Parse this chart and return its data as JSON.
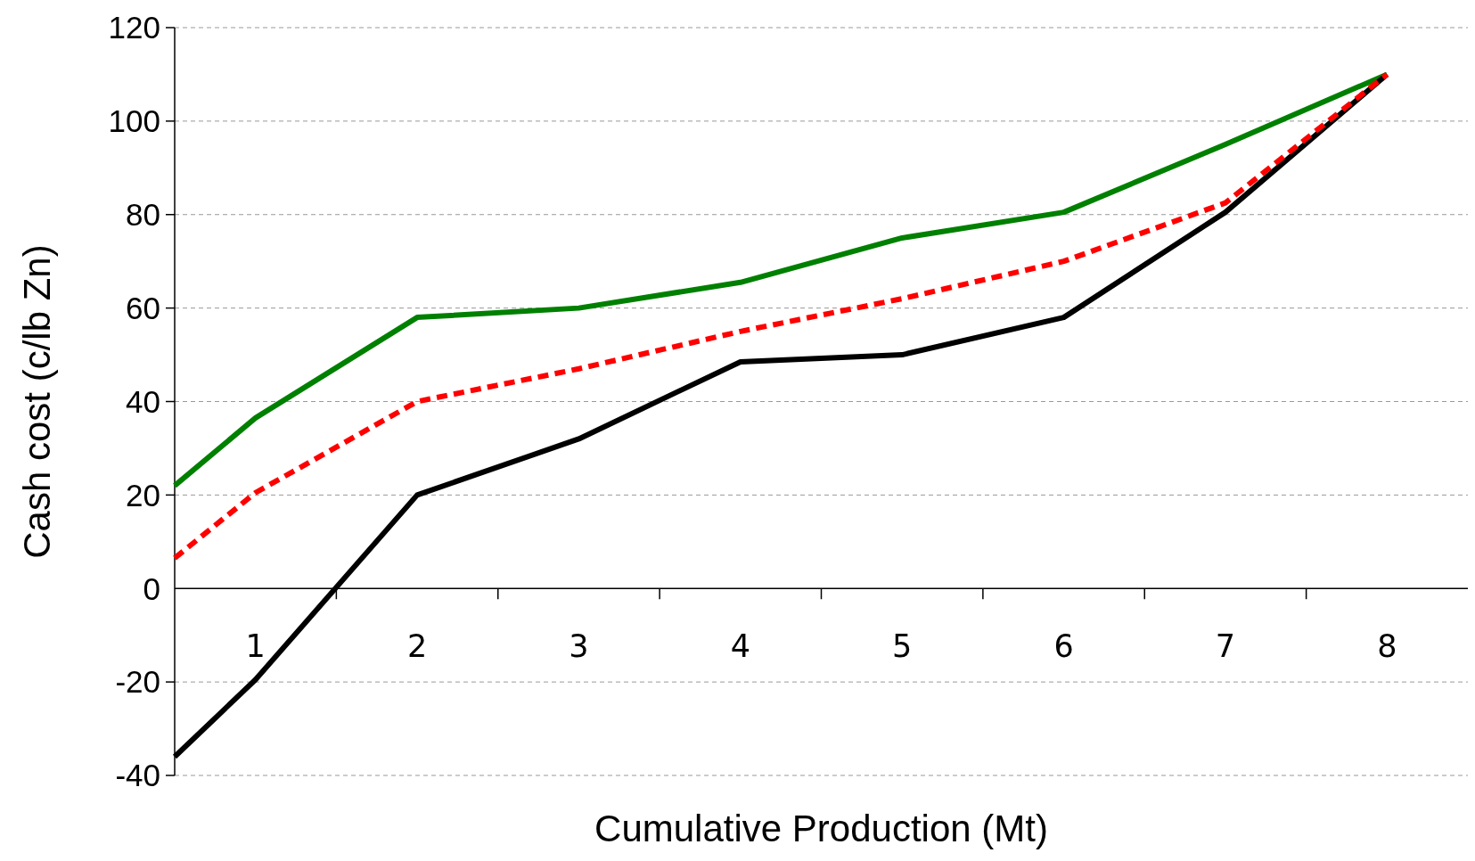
{
  "chart_data": {
    "type": "line",
    "xlabel": "Cumulative Production (Mt)",
    "ylabel": "Cash cost (c/lb Zn)",
    "x": [
      0.5,
      1,
      2,
      3,
      4,
      5,
      6,
      7,
      8
    ],
    "xlim": [
      0.5,
      8.5
    ],
    "xticks": [
      1,
      {
        "value": 1.5,
        "label": null
      },
      2,
      {
        "value": 2.5,
        "label": null
      },
      3,
      {
        "value": 3.5,
        "label": null
      },
      4,
      {
        "value": 4.5,
        "label": null
      },
      5,
      {
        "value": 5.5,
        "label": null
      },
      6,
      {
        "value": 6.5,
        "label": null
      },
      7,
      {
        "value": 7.5,
        "label": null
      },
      8
    ],
    "ylim": [
      -40,
      120
    ],
    "yticks": [
      -40,
      -20,
      0,
      20,
      40,
      60,
      80,
      100,
      120
    ],
    "grid": "y",
    "legend": false,
    "series": [
      {
        "color": "#008000",
        "line_style": "solid",
        "values": [
          22,
          36.5,
          58,
          60,
          65.5,
          75,
          80.5,
          95,
          110
        ]
      },
      {
        "color": "#ff0000",
        "line_style": "dashed",
        "values": [
          6.5,
          20.5,
          40,
          47,
          55,
          62,
          70,
          82.5,
          110
        ]
      },
      {
        "color": "#000000",
        "line_style": "solid",
        "values": [
          -36,
          -19.5,
          20,
          32,
          48.5,
          50,
          58,
          80.5,
          110
        ]
      }
    ]
  }
}
